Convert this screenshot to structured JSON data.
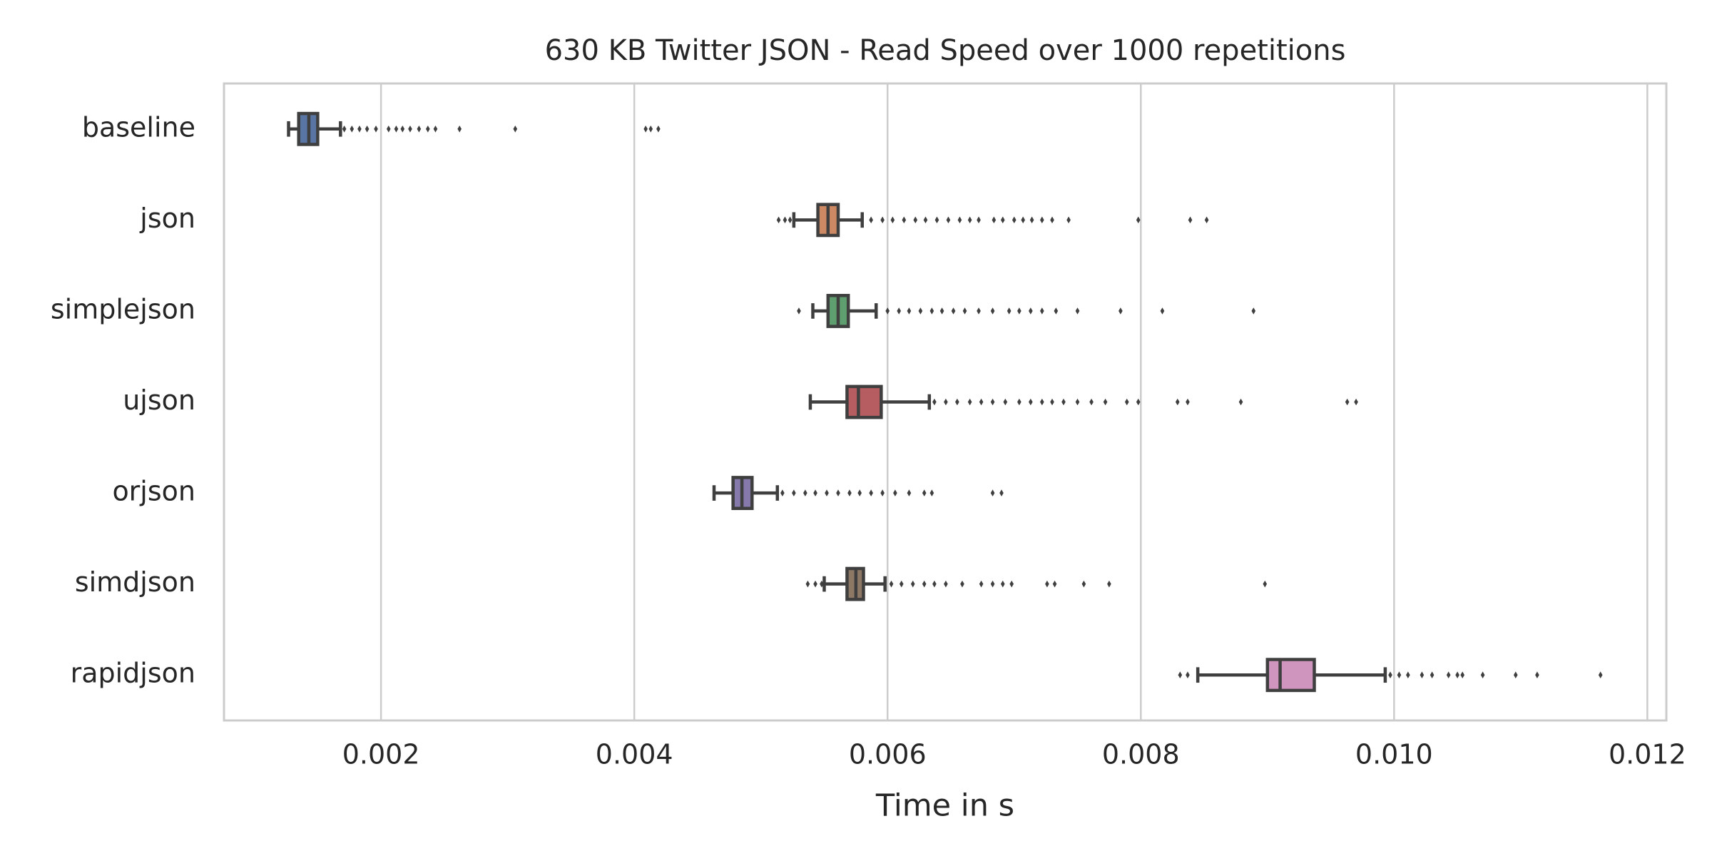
{
  "chart_data": {
    "type": "boxplot",
    "title": "630 KB Twitter JSON - Read Speed over 1000 repetitions",
    "xlabel": "Time in s",
    "orientation": "horizontal",
    "grid": true,
    "xlim": [
      0.00076,
      0.01215
    ],
    "xticks": [
      0.002,
      0.004,
      0.006,
      0.008,
      {
        "value": 0.01,
        "label": "0.010"
      },
      0.012
    ],
    "categories": [
      "baseline",
      "json",
      "simplejson",
      "ujson",
      "orjson",
      "simdjson",
      "rapidjson"
    ],
    "boxes": [
      {
        "color": "#5875a4",
        "whislo": 0.00127,
        "q1": 0.00135,
        "med": 0.00143,
        "q3": 0.0015,
        "whishi": 0.00168,
        "fliers": [
          0.00171,
          0.00177,
          0.00183,
          0.00189,
          0.00196,
          0.00206,
          0.00212,
          0.00217,
          0.00223,
          0.0023,
          0.00237,
          0.00243,
          0.00262,
          0.00306,
          0.00409,
          0.00413,
          0.00419
        ]
      },
      {
        "color": "#cc8963",
        "whislo": 0.00526,
        "q1": 0.00545,
        "med": 0.00553,
        "q3": 0.00561,
        "whishi": 0.0058,
        "fliers": [
          0.00514,
          0.00519,
          0.00523,
          0.00587,
          0.00596,
          0.00604,
          0.00613,
          0.00622,
          0.0063,
          0.00639,
          0.00648,
          0.00657,
          0.00665,
          0.00672,
          0.00684,
          0.00691,
          0.007,
          0.00707,
          0.00714,
          0.00722,
          0.0073,
          0.00743,
          0.00798,
          0.00839,
          0.00852
        ]
      },
      {
        "color": "#5f9e6e",
        "whislo": 0.00541,
        "q1": 0.00553,
        "med": 0.00561,
        "q3": 0.00569,
        "whishi": 0.00591,
        "fliers": [
          0.0053,
          0.006,
          0.00609,
          0.00617,
          0.00626,
          0.00635,
          0.00643,
          0.00652,
          0.00661,
          0.00672,
          0.00683,
          0.00696,
          0.00704,
          0.00713,
          0.00722,
          0.00733,
          0.0075,
          0.00784,
          0.00817,
          0.00889
        ]
      },
      {
        "color": "#b55d60",
        "whislo": 0.00539,
        "q1": 0.00568,
        "med": 0.00577,
        "q3": 0.00595,
        "whishi": 0.00633,
        "fliers": [
          0.00637,
          0.00646,
          0.00655,
          0.00665,
          0.00674,
          0.00683,
          0.00693,
          0.00704,
          0.00713,
          0.00722,
          0.0073,
          0.00739,
          0.0075,
          0.00761,
          0.00772,
          0.00789,
          0.00798,
          0.00829,
          0.00837,
          0.00879,
          0.00963,
          0.0097
        ]
      },
      {
        "color": "#857aab",
        "whislo": 0.00463,
        "q1": 0.00478,
        "med": 0.00485,
        "q3": 0.00493,
        "whishi": 0.00513,
        "fliers": [
          0.00517,
          0.00526,
          0.00535,
          0.00543,
          0.00552,
          0.00561,
          0.0057,
          0.00578,
          0.00587,
          0.00596,
          0.00606,
          0.00617,
          0.00629,
          0.00635,
          0.00683,
          0.0069
        ]
      },
      {
        "color": "#8d7866",
        "whislo": 0.0055,
        "q1": 0.00568,
        "med": 0.00575,
        "q3": 0.00581,
        "whishi": 0.00598,
        "fliers": [
          0.00537,
          0.00543,
          0.00548,
          0.00603,
          0.00611,
          0.0062,
          0.00629,
          0.00637,
          0.00646,
          0.00659,
          0.00674,
          0.00683,
          0.00691,
          0.00698,
          0.00726,
          0.00732,
          0.00755,
          0.00775,
          0.00898
        ]
      },
      {
        "color": "#d095bf",
        "whislo": 0.00845,
        "q1": 0.009,
        "med": 0.0091,
        "q3": 0.00937,
        "whishi": 0.00993,
        "fliers": [
          0.00831,
          0.00837,
          0.00997,
          0.01004,
          0.01011,
          0.01022,
          0.0103,
          0.01043,
          0.0105,
          0.01054,
          0.0107,
          0.01096,
          0.01113,
          0.01163
        ]
      }
    ]
  }
}
